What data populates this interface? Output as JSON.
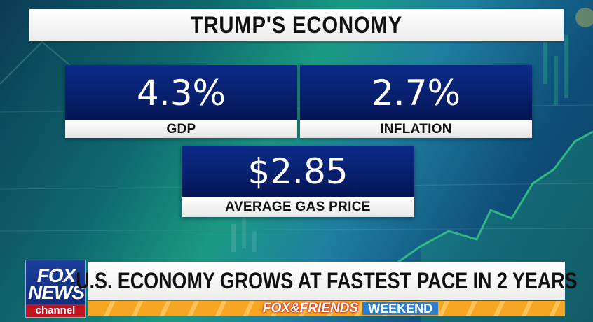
{
  "headline": {
    "title": "TRUMP'S ECONOMY"
  },
  "stats": [
    {
      "value": "4.3%",
      "label": "GDP"
    },
    {
      "value": "2.7%",
      "label": "INFLATION"
    },
    {
      "value": "$2.85",
      "label": "AVERAGE GAS PRICE"
    }
  ],
  "lower_third": {
    "logo": {
      "line1": "FOX",
      "line2": "NEWS",
      "line3": "channel"
    },
    "ticker": "U.S. ECONOMY GROWS AT FASTEST PACE IN 2 YEARS",
    "show": {
      "name": "FOX&FRIENDS",
      "subtitle": "WEEKEND"
    }
  },
  "colors": {
    "card_blue": "#08206e",
    "fox_red": "#c0151e",
    "show_orange": "#f6a623",
    "weekend_blue": "#2a7fd0",
    "chart_green": "#3ddc84"
  }
}
